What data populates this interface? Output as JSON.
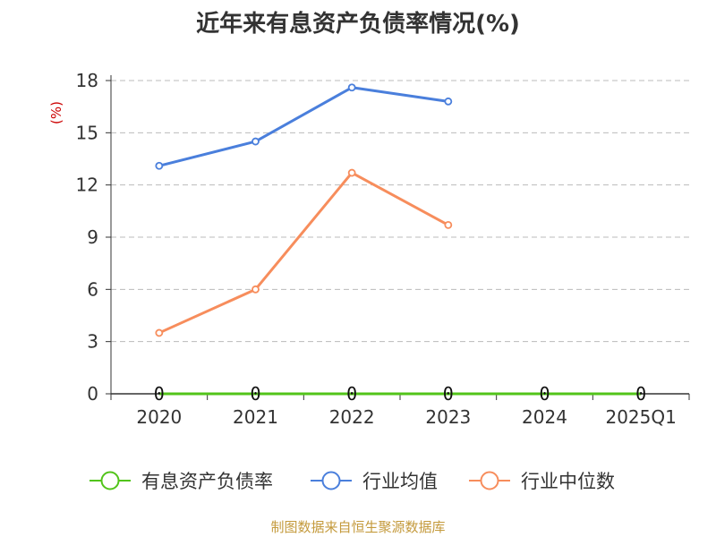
{
  "title": "近年来有息资产负债率情况(%)",
  "source": "制图数据来自恒生聚源数据库",
  "colors": {
    "有息资产负债率": "#52c41a",
    "行业均值": "#4a7fdc",
    "行业中位数": "#f78d5c",
    "ylabel": "#cc0000"
  },
  "chart_data": {
    "type": "line",
    "title": "近年来有息资产负债率情况(%)",
    "ylabel": "(%)",
    "xlabel": "",
    "ylim": [
      0,
      18
    ],
    "yticks": [
      0,
      3,
      6,
      9,
      12,
      15,
      18
    ],
    "grid": true,
    "legend": "bottom",
    "categories": [
      "2020",
      "2021",
      "2022",
      "2023",
      "2024",
      "2025Q1"
    ],
    "series": [
      {
        "name": "有息资产负债率",
        "values": [
          0,
          0,
          0,
          0,
          0,
          0
        ],
        "labels": [
          "0",
          "0",
          "0",
          "0",
          "0",
          "0"
        ]
      },
      {
        "name": "行业均值",
        "values": [
          13.1,
          14.5,
          17.6,
          16.8,
          null,
          null
        ]
      },
      {
        "name": "行业中位数",
        "values": [
          3.5,
          6.0,
          12.7,
          9.7,
          null,
          null
        ]
      }
    ]
  }
}
